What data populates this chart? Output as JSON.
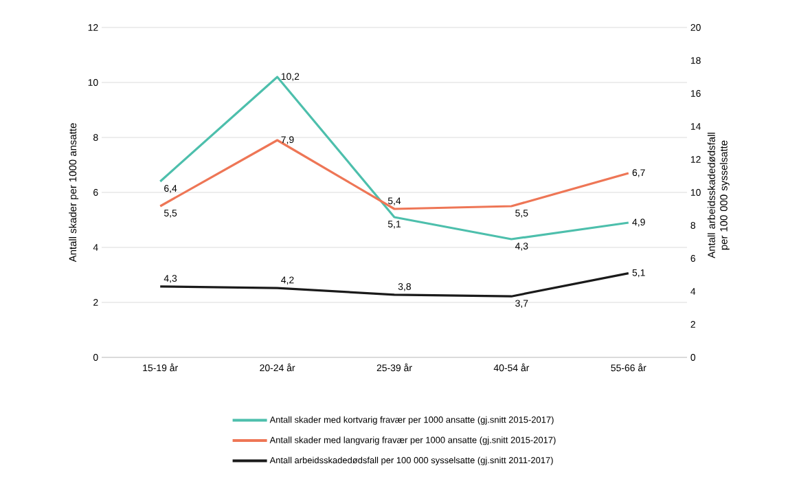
{
  "chart_data": {
    "type": "line",
    "categories": [
      "15-19 år",
      "20-24 år",
      "25-39 år",
      "40-54 år",
      "55-66 år"
    ],
    "ylabel": "Antall skader per 1000 ansatte",
    "y2label": "Antall arbeidsskadedødsfall per 100 000 sysselsatte",
    "ylim": [
      0,
      12
    ],
    "yticks": [
      0,
      2,
      4,
      6,
      8,
      10,
      12
    ],
    "y2lim": [
      0,
      20
    ],
    "y2ticks": [
      0,
      2,
      4,
      6,
      8,
      10,
      12,
      14,
      16,
      18,
      20
    ],
    "grid": "y",
    "legend": "bottom",
    "series": [
      {
        "name": "Antall skader med kortvarig fravær per 1000 ansatte (gj.snitt 2015-2017)",
        "color": "#4dbfac",
        "values": [
          6.4,
          10.2,
          5.1,
          4.3,
          4.9
        ],
        "value_labels": [
          "6,4",
          "10,2",
          "5,1",
          "4,3",
          "4,9"
        ]
      },
      {
        "name": "Antall skader med langvarig fravær per 1000 ansatte (gj.snitt 2015-2017)",
        "color": "#ee7656",
        "values": [
          5.5,
          7.9,
          5.4,
          5.5,
          6.7
        ],
        "value_labels": [
          "5,5",
          "7,9",
          "5,4",
          "5,5",
          "6,7"
        ]
      },
      {
        "name": "Antall arbeidsskadedødsfall per 100 000 sysselsatte (gj.snitt 2011-2017)",
        "color": "#1a1a1a",
        "axis": "y2",
        "values": [
          4.3,
          4.2,
          3.8,
          3.7,
          5.1
        ],
        "value_labels": [
          "4,3",
          "4,2",
          "3,8",
          "3,7",
          "5,1"
        ]
      }
    ]
  }
}
